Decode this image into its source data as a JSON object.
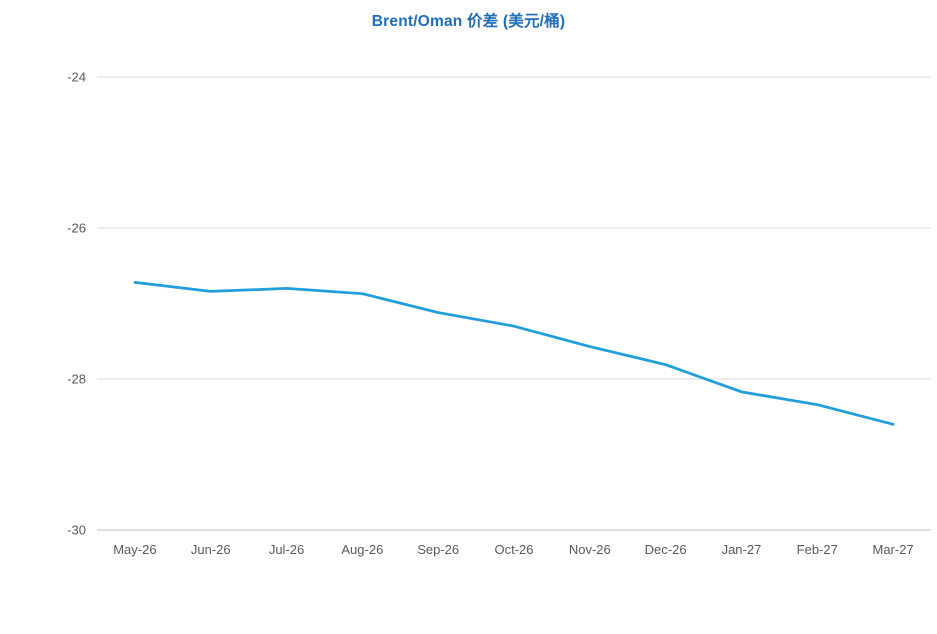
{
  "chart_data": {
    "type": "line",
    "title": "Brent/Oman 价差 (美元/桶)",
    "categories": [
      "May-26",
      "Jun-26",
      "Jul-26",
      "Aug-26",
      "Sep-26",
      "Oct-26",
      "Nov-26",
      "Dec-26",
      "Jan-27",
      "Feb-27",
      "Mar-27"
    ],
    "values": [
      -26.72,
      -26.84,
      -26.8,
      -26.87,
      -27.12,
      -27.3,
      -27.57,
      -27.81,
      -28.17,
      -28.34,
      -28.6
    ],
    "xlabel": "",
    "ylabel": "",
    "ylim": [
      -30,
      -24
    ],
    "yticks": [
      -24,
      -26,
      -28,
      -30
    ],
    "grid": true,
    "legend": "none",
    "colors": {
      "line": "#1F9ED9",
      "title": "#1F6DB8",
      "tick_label": "#595959",
      "gridline": "#D9D9D9",
      "axis_line": "#BFBFBF",
      "background": "#FFFFFF"
    }
  }
}
